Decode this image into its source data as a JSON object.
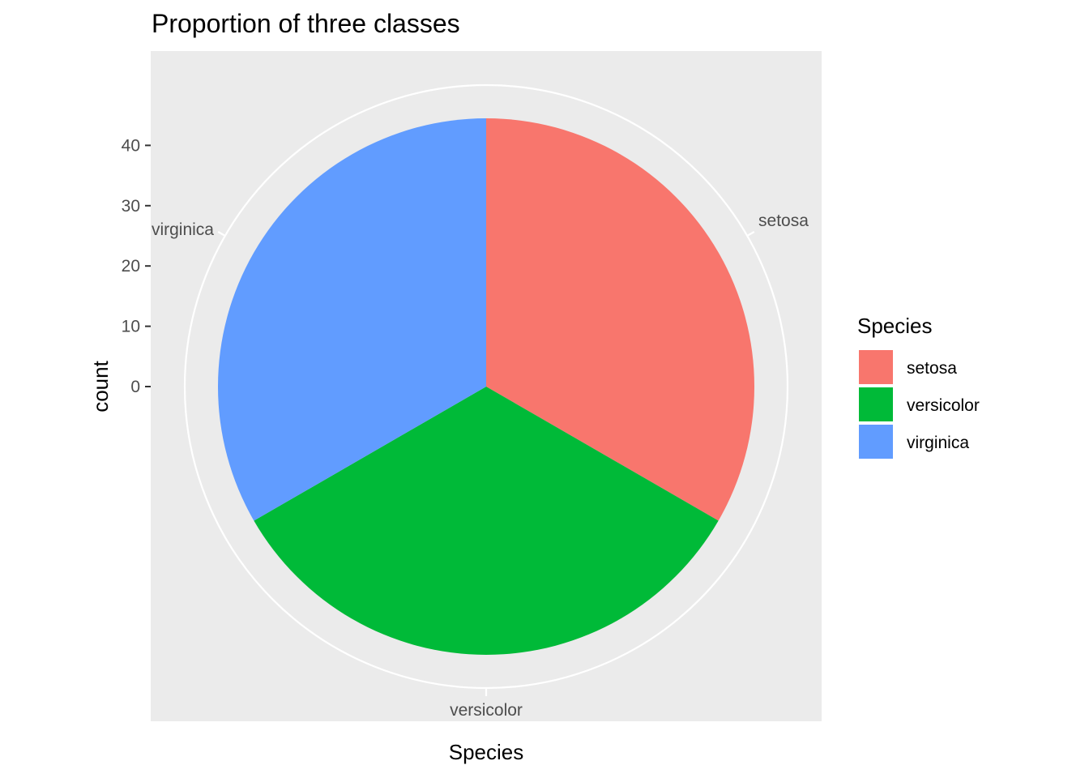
{
  "chart_data": {
    "type": "pie",
    "title": "Proportion of three classes",
    "xlabel": "Species",
    "ylabel": "count",
    "ylim": [
      0,
      50
    ],
    "y_ticks": [
      0,
      10,
      20,
      30,
      40
    ],
    "categories": [
      "setosa",
      "versicolor",
      "virginica"
    ],
    "values": [
      50,
      50,
      50
    ],
    "colors": [
      "#F8766D",
      "#00BA38",
      "#619CFF"
    ],
    "legend": {
      "title": "Species",
      "position": "right",
      "entries": [
        "setosa",
        "versicolor",
        "virginica"
      ]
    },
    "panel_background": "#EBEBEB",
    "grid_color": "#FFFFFF",
    "grid": true
  }
}
